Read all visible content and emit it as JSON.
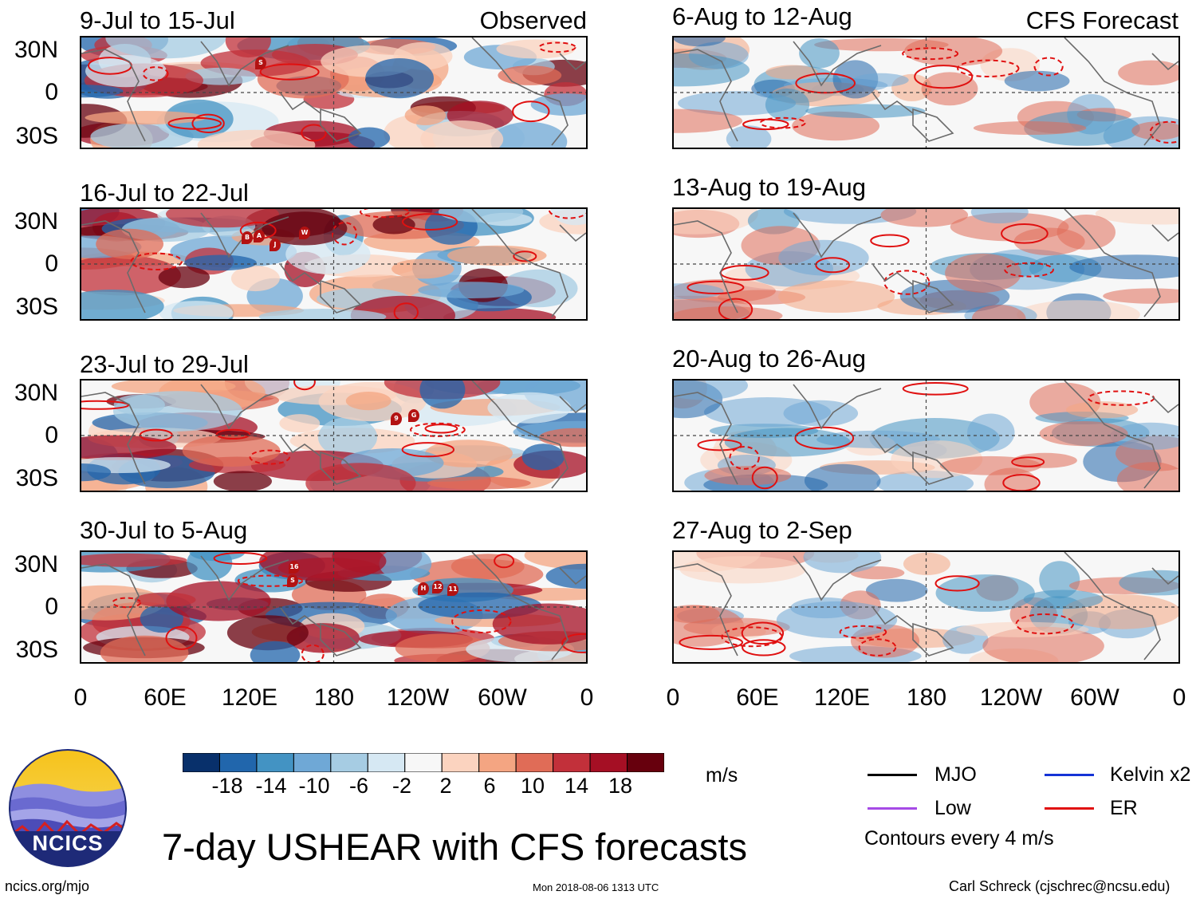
{
  "header": {
    "observed_label": "Observed",
    "forecast_label": "CFS Forecast"
  },
  "panels": {
    "observed": [
      {
        "title": "9-Jul to 15-Jul",
        "storms": [
          "S"
        ]
      },
      {
        "title": "16-Jul to 22-Jul",
        "storms": [
          "B",
          "A",
          "J",
          "W"
        ]
      },
      {
        "title": "23-Jul to 29-Jul",
        "storms": [
          "9",
          "G"
        ]
      },
      {
        "title": "30-Jul to 5-Aug",
        "storms": [
          "16",
          "S",
          "H",
          "12",
          "11"
        ]
      }
    ],
    "forecast": [
      {
        "title": "6-Aug to 12-Aug"
      },
      {
        "title": "13-Aug to 19-Aug"
      },
      {
        "title": "20-Aug to 26-Aug"
      },
      {
        "title": "27-Aug to 2-Sep"
      }
    ]
  },
  "axes": {
    "lat_labels": [
      "30N",
      "0",
      "30S"
    ],
    "lon_labels": [
      "0",
      "60E",
      "120E",
      "180",
      "120W",
      "60W",
      "0"
    ]
  },
  "colorbar": {
    "ticks": [
      "-18",
      "-14",
      "-10",
      "-6",
      "-2",
      "2",
      "6",
      "10",
      "14",
      "18"
    ],
    "colors": [
      "#08306b",
      "#2166ac",
      "#4393c3",
      "#6fa8d6",
      "#a6cce3",
      "#d6e8f3",
      "#f7f7f7",
      "#fbd3bf",
      "#f4a582",
      "#e06c57",
      "#c2303a",
      "#a50f24",
      "#67000d"
    ],
    "unit": "m/s"
  },
  "legend": {
    "items": [
      {
        "label": "MJO",
        "color": "#000000"
      },
      {
        "label": "Kelvin x2",
        "color": "#1533d6"
      },
      {
        "label": "Low",
        "color": "#a64ae6"
      },
      {
        "label": "ER",
        "color": "#e01010"
      }
    ],
    "contour_note": "Contours every 4 m/s"
  },
  "logo": {
    "text": "NCICS"
  },
  "footer": {
    "title": "7-day USHEAR with CFS forecasts",
    "website": "ncics.org/mjo",
    "timestamp": "Mon 2018-08-06 1313 UTC",
    "credit": "Carl Schreck (cjschrec@ncsu.edu)"
  }
}
